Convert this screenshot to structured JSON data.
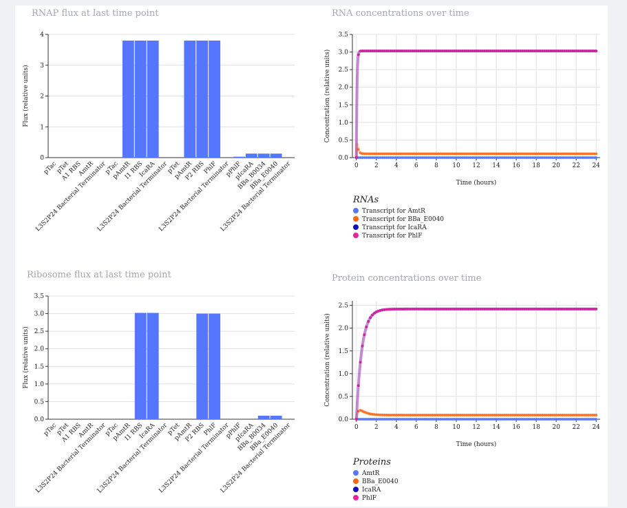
{
  "chart_data": [
    {
      "id": "rnap",
      "type": "bar",
      "title": "RNAP flux at last time point",
      "xlabel": "",
      "ylabel": "Flux (relative units)",
      "ylim": [
        0,
        4
      ],
      "yticks": [
        "0",
        "1",
        "2",
        "3",
        "4"
      ],
      "categories": [
        "pTac",
        "pTet",
        "A1 RBS",
        "AmtR",
        "L3S2P24 Bacterial Terminator",
        "pTac",
        "pAmtR",
        "I1 RBS",
        "IcaRA",
        "L3S2P24 Bacterial Terminator",
        "pTet",
        "pAmtR",
        "P2 RBS",
        "PhlF",
        "L3S2P24 Bacterial Terminator",
        "pPhlF",
        "pIcaRA",
        "BBa_B0034",
        "BBa_E0040",
        "L3S2P24 Bacterial Terminator"
      ],
      "values": [
        0,
        0,
        0,
        0,
        0,
        0,
        3.8,
        3.8,
        3.8,
        0,
        0,
        3.8,
        3.8,
        3.8,
        0,
        0.03,
        0.13,
        0.13,
        0.13,
        0
      ],
      "color": "#5577ff",
      "grid": true
    },
    {
      "id": "rna",
      "type": "line",
      "title": "RNA concentrations over time",
      "xlabel": "Time (hours)",
      "ylabel": "Concentration (relative units)",
      "xlim": [
        -0.4,
        24.4
      ],
      "ylim": [
        0,
        3.5
      ],
      "xticks": [
        "0",
        "2",
        "4",
        "6",
        "8",
        "10",
        "12",
        "14",
        "16",
        "18",
        "20",
        "22",
        "24"
      ],
      "yticks": [
        "0.0",
        "0.5",
        "1.0",
        "1.5",
        "2.0",
        "2.5",
        "3.0",
        "3.5"
      ],
      "legend_title": "RNAs",
      "legend_position": "bottom-left",
      "grid": true,
      "series": [
        {
          "name": "Transcript for AmtR",
          "color": "#5577ff",
          "model": "flat",
          "final": 0.0
        },
        {
          "name": "Transcript for BBa_E0040",
          "color": "#ff6611",
          "model": "spike",
          "final": 0.11,
          "peak": 0.78,
          "tau": 0.12
        },
        {
          "name": "Transcript for IcaRA",
          "color": "#1111bb",
          "model": "rise",
          "final": 3.03,
          "tau": 0.06
        },
        {
          "name": "Transcript for PhlF",
          "color": "#e8259c",
          "model": "rise",
          "final": 3.03,
          "tau": 0.06
        }
      ]
    },
    {
      "id": "ribo",
      "type": "bar",
      "title": "Ribosome flux at last time point",
      "xlabel": "",
      "ylabel": "Flux (relative units)",
      "ylim": [
        0,
        3.5
      ],
      "yticks": [
        "0.0",
        "0.5",
        "1.0",
        "1.5",
        "2.0",
        "2.5",
        "3.0",
        "3.5"
      ],
      "categories": [
        "pTac",
        "pTet",
        "A1 RBS",
        "AmtR",
        "L3S2P24 Bacterial Terminator",
        "pTac",
        "pAmtR",
        "I1 RBS",
        "IcaRA",
        "L3S2P24 Bacterial Terminator",
        "pTet",
        "pAmtR",
        "P2 RBS",
        "PhlF",
        "L3S2P24 Bacterial Terminator",
        "pPhlF",
        "pIcaRA",
        "BBa_B0034",
        "BBa_E0040",
        "L3S2P24 Bacterial Terminator"
      ],
      "values": [
        0,
        0,
        0,
        0,
        0,
        0,
        0,
        3.02,
        3.02,
        0,
        0,
        0,
        3.0,
        3.0,
        0,
        0,
        0,
        0.1,
        0.1,
        0
      ],
      "color": "#5577ff",
      "grid": true
    },
    {
      "id": "prot",
      "type": "line",
      "title": "Protein concentrations over time",
      "xlabel": "Time (hours)",
      "ylabel": "Concentration (relative units)",
      "xlim": [
        -0.4,
        24.4
      ],
      "ylim": [
        0,
        2.6
      ],
      "xticks": [
        "0",
        "2",
        "4",
        "6",
        "8",
        "10",
        "12",
        "14",
        "16",
        "18",
        "20",
        "22",
        "24"
      ],
      "yticks": [
        "0.0",
        "0.5",
        "1.0",
        "1.5",
        "2.0",
        "2.5"
      ],
      "legend_title": "Proteins",
      "legend_position": "bottom-left",
      "grid": true,
      "series": [
        {
          "name": "AmtR",
          "color": "#5577ff",
          "model": "flat",
          "final": 0.0
        },
        {
          "name": "BBa_E0040",
          "color": "#ff6611",
          "model": "spike",
          "final": 0.09,
          "peak": 0.36,
          "tau": 0.6
        },
        {
          "name": "IcaRA",
          "color": "#1111bb",
          "model": "rise",
          "final": 2.42,
          "tau": 0.55
        },
        {
          "name": "PhlF",
          "color": "#e8259c",
          "model": "rise",
          "final": 2.42,
          "tau": 0.55
        }
      ]
    }
  ]
}
